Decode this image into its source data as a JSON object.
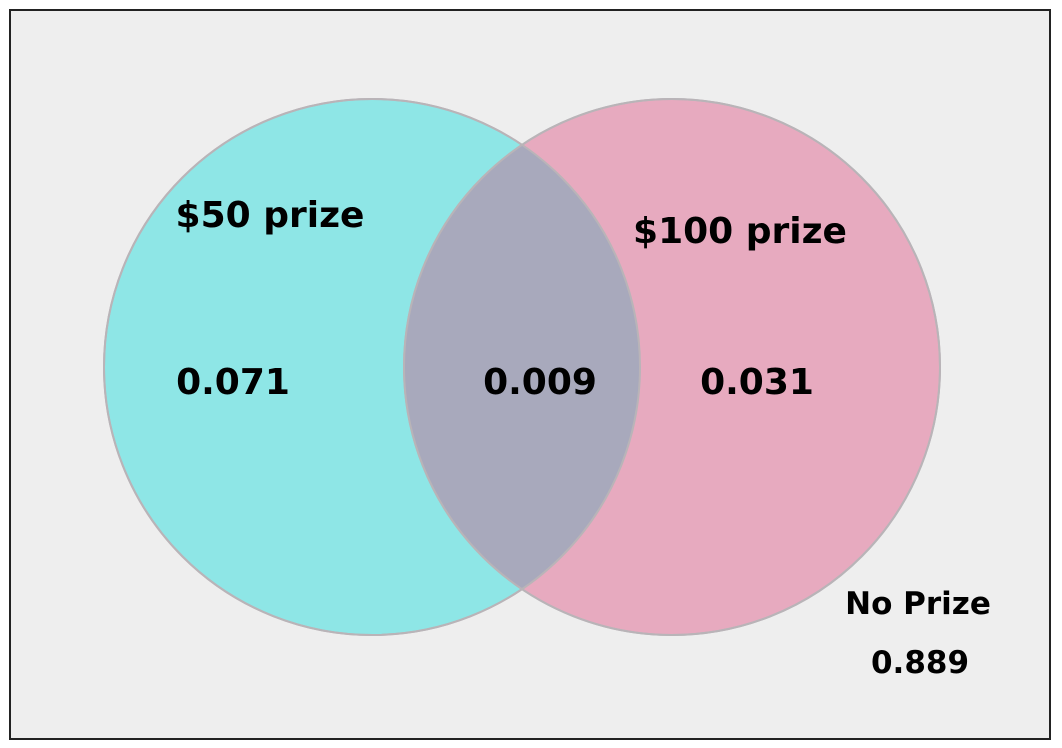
{
  "diagram": {
    "type": "venn",
    "colors": {
      "background": "#eeeeee",
      "border": "#222222",
      "set_a_fill": "#8ee6e6",
      "set_b_fill": "#e7aabf",
      "overlap_fill": "#a8a9bc",
      "circle_stroke": "#b9b4b8"
    },
    "sets": [
      {
        "label": "$50 prize",
        "only_value": "0.071"
      },
      {
        "label": "$100 prize",
        "only_value": "0.031"
      }
    ],
    "intersection_value": "0.009",
    "outside": {
      "label": "No Prize",
      "value": "0.889"
    }
  }
}
